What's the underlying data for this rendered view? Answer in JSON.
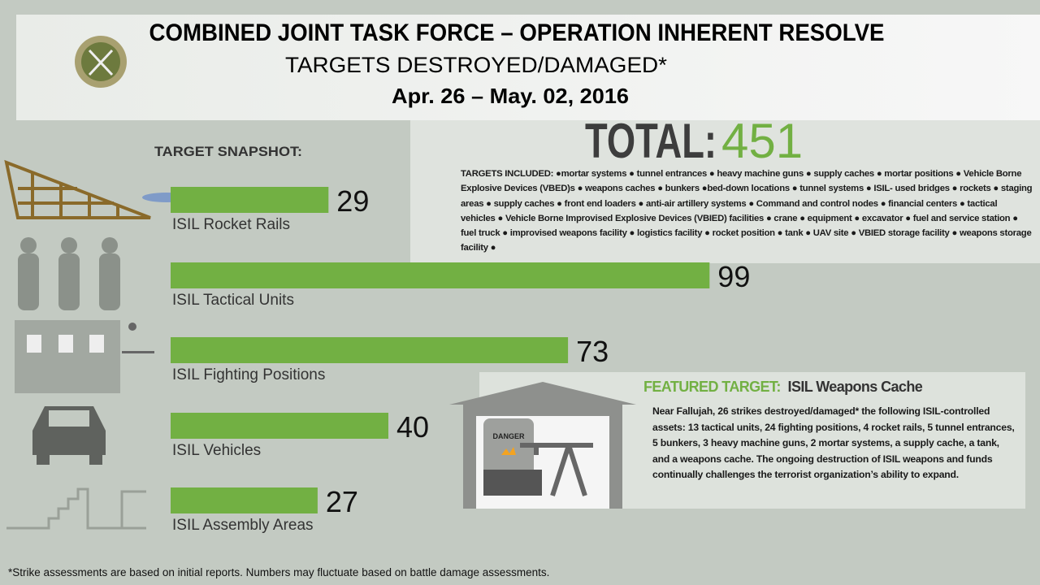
{
  "chart_data": {
    "type": "bar",
    "title": "COMBINED JOINT TASK FORCE – OPERATION INHERENT RESOLVE",
    "subtitle": "TARGETS DESTROYED/DAMAGED*",
    "date": "Apr. 26 – May. 02,  2016",
    "section_label": "TARGET SNAPSHOT:",
    "categories": [
      "ISIL Rocket Rails",
      "ISIL Tactical Units",
      "ISIL Fighting Positions",
      "ISIL Vehicles",
      "ISIL Assembly Areas"
    ],
    "values": [
      29,
      99,
      73,
      40,
      27
    ],
    "color": "#72b043"
  },
  "total": {
    "label": "TOTAL:",
    "value": 451
  },
  "targets_included": "TARGETS INCLUDED: ●mortar systems ● tunnel entrances ● heavy machine guns ● supply caches ● mortar positions ● Vehicle Borne Explosive Devices (VBED)s ● weapons caches ● bunkers ●bed-down locations ● tunnel systems ● ISIL- used bridges ● rockets ● staging areas ● supply caches ● front end loaders ● anti-air artillery systems ● Command and control nodes ● financial centers ● tactical vehicles ● Vehicle Borne Improvised Explosive Devices (VBIED) facilities ● crane ● equipment ● excavator ● fuel and service station ● fuel truck ● improvised weapons facility ● logistics facility ● rocket position ● tank ● UAV site ● VBIED storage facility ● weapons storage facility ●",
  "featured": {
    "label": "FEATURED TARGET:",
    "title": "ISIL Weapons Cache",
    "danger": "DANGER",
    "text": "Near Fallujah, 26 strikes destroyed/damaged* the following ISIL-controlled assets: 13 tactical units, 24 fighting positions, 4 rocket rails, 5 tunnel entrances, 5 bunkers, 3 heavy machine guns, 2 mortar systems, a supply cache, a tank, and a weapons cache. The ongoing destruction of ISIL weapons and funds continually challenges the terrorist organization’s ability to expand."
  },
  "footnote": "*Strike assessments are based on initial reports. Numbers may fluctuate based on battle damage assessments."
}
